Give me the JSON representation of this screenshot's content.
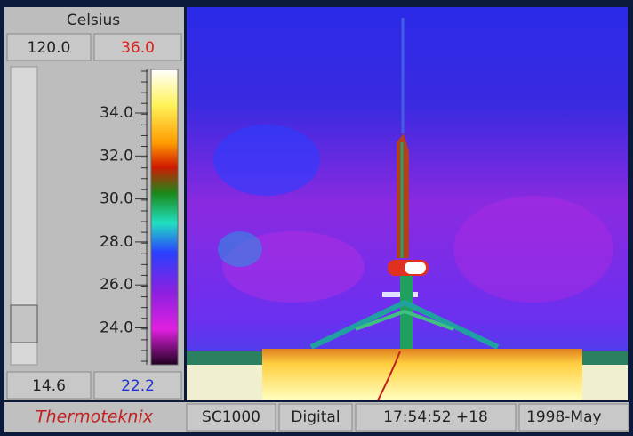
{
  "panel": {
    "unit": "Celsius",
    "range_max": "120.0",
    "level_max": "36.0",
    "scale_labels": [
      "34.0",
      "32.0",
      "30.0",
      "28.0",
      "26.0",
      "24.0"
    ],
    "range_min": "14.6",
    "level_min": "22.2"
  },
  "status_bar": {
    "brand": "Thermoteknix",
    "camera": "SC1000",
    "mode": "Digital",
    "time": "17:54:52 +18",
    "date": "1998-May"
  }
}
